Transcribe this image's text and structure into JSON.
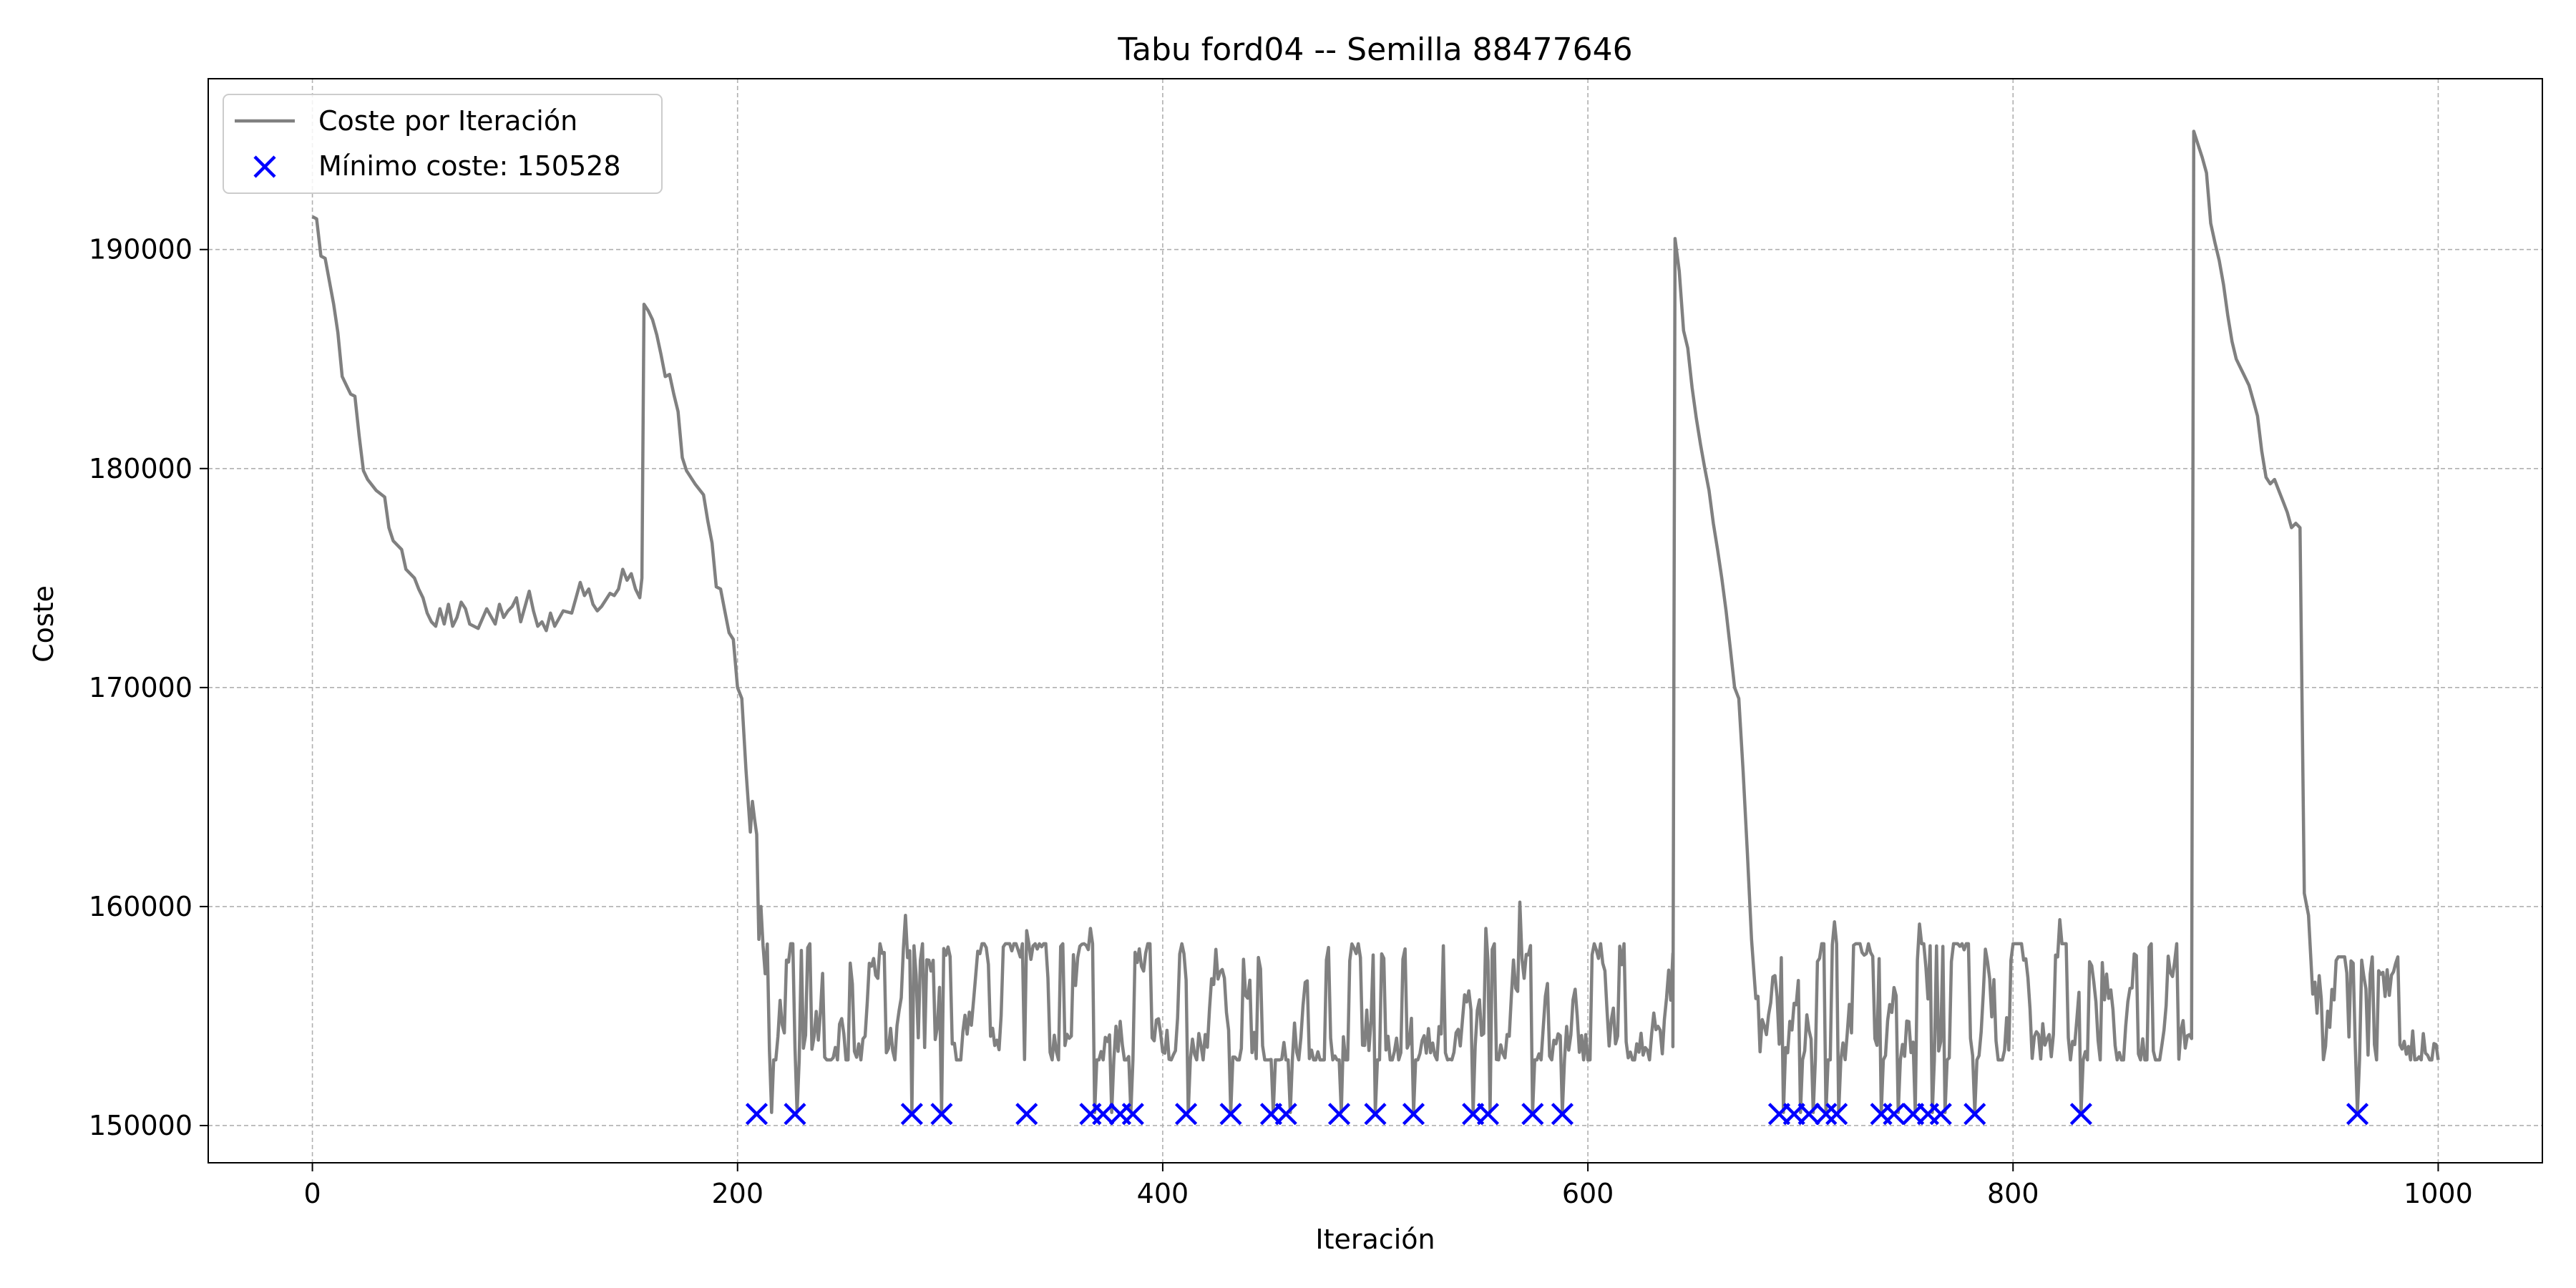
{
  "colors": {
    "line": "#808080",
    "marker": "#0000ff",
    "grid": "#b0b0b0",
    "axis": "#000000",
    "background": "#ffffff"
  },
  "chart_data": {
    "type": "line",
    "title": "Tabu ford04 -- Semilla 88477646",
    "xlabel": "Iteración",
    "ylabel": "Coste",
    "xlim": [
      -49,
      1049
    ],
    "ylim": [
      148300,
      197800
    ],
    "xticks": [
      0,
      200,
      400,
      600,
      800,
      1000
    ],
    "xtick_labels": [
      "0",
      "200",
      "400",
      "600",
      "800",
      "1000"
    ],
    "yticks": [
      150000,
      160000,
      170000,
      180000,
      190000
    ],
    "ytick_labels": [
      "150000",
      "160000",
      "170000",
      "180000",
      "190000"
    ],
    "grid": true,
    "grid_style": "dashed",
    "legend": {
      "location": "upper-left",
      "entries": [
        {
          "label": "Coste por Iteración",
          "kind": "line"
        },
        {
          "label": "Mínimo coste: 150528",
          "kind": "marker"
        }
      ]
    },
    "series": [
      {
        "name": "Coste por Iteración",
        "kind": "line",
        "segments": [
          {
            "kind": "anchors",
            "points": [
              [
                0,
                191500
              ],
              [
                2,
                191400
              ],
              [
                4,
                189700
              ],
              [
                6,
                189600
              ],
              [
                10,
                187500
              ],
              [
                12,
                186200
              ],
              [
                14,
                184200
              ],
              [
                16,
                183800
              ],
              [
                18,
                183400
              ],
              [
                20,
                183300
              ],
              [
                22,
                181500
              ],
              [
                24,
                179900
              ],
              [
                26,
                179500
              ],
              [
                30,
                179000
              ],
              [
                34,
                178700
              ],
              [
                36,
                177300
              ],
              [
                38,
                176700
              ],
              [
                42,
                176300
              ],
              [
                44,
                175400
              ],
              [
                48,
                175000
              ],
              [
                50,
                174500
              ],
              [
                52,
                174100
              ],
              [
                54,
                173400
              ],
              [
                56,
                173000
              ],
              [
                58,
                172800
              ],
              [
                60,
                173600
              ],
              [
                62,
                172900
              ],
              [
                64,
                173800
              ],
              [
                66,
                172800
              ],
              [
                68,
                173200
              ],
              [
                70,
                173900
              ],
              [
                72,
                173600
              ],
              [
                74,
                172900
              ],
              [
                78,
                172700
              ],
              [
                82,
                173600
              ],
              [
                86,
                172900
              ],
              [
                88,
                173800
              ],
              [
                90,
                173200
              ],
              [
                92,
                173500
              ],
              [
                94,
                173700
              ],
              [
                96,
                174100
              ],
              [
                98,
                173000
              ],
              [
                100,
                173700
              ],
              [
                102,
                174400
              ],
              [
                104,
                173500
              ],
              [
                106,
                172800
              ],
              [
                108,
                173000
              ],
              [
                110,
                172600
              ],
              [
                112,
                173400
              ],
              [
                114,
                172800
              ],
              [
                118,
                173500
              ],
              [
                122,
                173400
              ],
              [
                124,
                174100
              ],
              [
                126,
                174800
              ],
              [
                128,
                174200
              ],
              [
                130,
                174500
              ],
              [
                132,
                173800
              ],
              [
                134,
                173500
              ],
              [
                136,
                173700
              ],
              [
                138,
                174000
              ],
              [
                140,
                174300
              ],
              [
                142,
                174200
              ],
              [
                144,
                174500
              ],
              [
                146,
                175400
              ],
              [
                148,
                174900
              ],
              [
                150,
                175200
              ],
              [
                152,
                174500
              ],
              [
                154,
                174100
              ],
              [
                155,
                175000
              ],
              [
                156,
                187500
              ],
              [
                158,
                187200
              ],
              [
                160,
                186800
              ],
              [
                162,
                186100
              ],
              [
                164,
                185200
              ],
              [
                166,
                184200
              ],
              [
                168,
                184300
              ],
              [
                170,
                183400
              ],
              [
                172,
                182600
              ],
              [
                174,
                180500
              ],
              [
                176,
                179900
              ],
              [
                180,
                179300
              ],
              [
                184,
                178800
              ],
              [
                186,
                177600
              ],
              [
                188,
                176600
              ],
              [
                190,
                174600
              ],
              [
                192,
                174500
              ],
              [
                194,
                173500
              ],
              [
                196,
                172500
              ],
              [
                198,
                172200
              ],
              [
                200,
                170000
              ],
              [
                202,
                169500
              ],
              [
                204,
                166200
              ],
              [
                206,
                163400
              ],
              [
                207,
                164800
              ],
              [
                208,
                164000
              ],
              [
                209,
                163300
              ],
              [
                210,
                158500
              ],
              [
                211,
                160000
              ],
              [
                212,
                158200
              ]
            ]
          },
          {
            "kind": "noise",
            "from": 213,
            "to": 640,
            "low": 153000,
            "high": 158300,
            "spikes": [
              [
                216,
                150600
              ],
              [
                228,
                150600
              ],
              [
                282,
                150600
              ],
              [
                296,
                150600
              ],
              [
                336,
                150600
              ],
              [
                368,
                150600
              ],
              [
                376,
                150600
              ],
              [
                385,
                150600
              ],
              [
                412,
                150600
              ],
              [
                432,
                150600
              ],
              [
                452,
                150600
              ],
              [
                460,
                150600
              ],
              [
                484,
                150600
              ],
              [
                500,
                150600
              ],
              [
                518,
                150600
              ],
              [
                546,
                150600
              ],
              [
                554,
                150600
              ],
              [
                574,
                150600
              ],
              [
                588,
                150600
              ],
              [
                279,
                159600
              ],
              [
                336,
                158900
              ],
              [
                366,
                159000
              ],
              [
                568,
                160200
              ],
              [
                552,
                159000
              ]
            ]
          },
          {
            "kind": "anchors",
            "points": [
              [
                640,
                153600
              ],
              [
                641,
                190500
              ],
              [
                643,
                189000
              ],
              [
                645,
                186300
              ],
              [
                647,
                185500
              ],
              [
                649,
                183700
              ],
              [
                651,
                182300
              ],
              [
                653,
                181100
              ],
              [
                655,
                180000
              ],
              [
                657,
                179000
              ],
              [
                659,
                177500
              ],
              [
                661,
                176300
              ],
              [
                663,
                175000
              ],
              [
                665,
                173500
              ],
              [
                667,
                171800
              ],
              [
                669,
                170000
              ],
              [
                671,
                169500
              ],
              [
                673,
                166200
              ],
              [
                675,
                162500
              ],
              [
                677,
                158500
              ],
              [
                679,
                155800
              ]
            ]
          },
          {
            "kind": "noise",
            "from": 680,
            "to": 884,
            "low": 153000,
            "high": 158300,
            "spikes": [
              [
                692,
                150600
              ],
              [
                700,
                150600
              ],
              [
                706,
                150600
              ],
              [
                712,
                150600
              ],
              [
                718,
                150600
              ],
              [
                738,
                150600
              ],
              [
                746,
                150600
              ],
              [
                754,
                150600
              ],
              [
                762,
                150600
              ],
              [
                768,
                150600
              ],
              [
                782,
                150600
              ],
              [
                832,
                150600
              ],
              [
                716,
                159300
              ],
              [
                756,
                159200
              ],
              [
                822,
                159400
              ]
            ]
          },
          {
            "kind": "anchors",
            "points": [
              [
                884,
                154300
              ],
              [
                885,
                195400
              ],
              [
                887,
                194800
              ],
              [
                889,
                194200
              ],
              [
                891,
                193500
              ],
              [
                893,
                191200
              ],
              [
                895,
                190300
              ],
              [
                897,
                189500
              ],
              [
                899,
                188400
              ],
              [
                901,
                187000
              ],
              [
                903,
                185800
              ],
              [
                905,
                185000
              ],
              [
                907,
                184600
              ],
              [
                909,
                184200
              ],
              [
                911,
                183800
              ],
              [
                913,
                183100
              ],
              [
                915,
                182400
              ],
              [
                917,
                180800
              ],
              [
                919,
                179600
              ],
              [
                921,
                179300
              ],
              [
                923,
                179500
              ],
              [
                925,
                179000
              ],
              [
                927,
                178500
              ],
              [
                929,
                178000
              ],
              [
                931,
                177300
              ],
              [
                933,
                177500
              ],
              [
                935,
                177300
              ],
              [
                937,
                160600
              ],
              [
                939,
                159600
              ],
              [
                941,
                156000
              ]
            ]
          },
          {
            "kind": "noise",
            "from": 942,
            "to": 1000,
            "low": 153000,
            "high": 157700,
            "spikes": [
              [
                962,
                150600
              ]
            ]
          }
        ]
      },
      {
        "name": "Mínimo coste: 150528",
        "kind": "scatter",
        "y": 150528,
        "x": [
          209,
          227,
          282,
          296,
          336,
          366,
          372,
          380,
          386,
          411,
          432,
          451,
          458,
          483,
          500,
          518,
          546,
          553,
          574,
          588,
          690,
          697,
          704,
          712,
          717,
          738,
          744,
          753,
          760,
          766,
          782,
          832,
          962
        ]
      }
    ]
  }
}
